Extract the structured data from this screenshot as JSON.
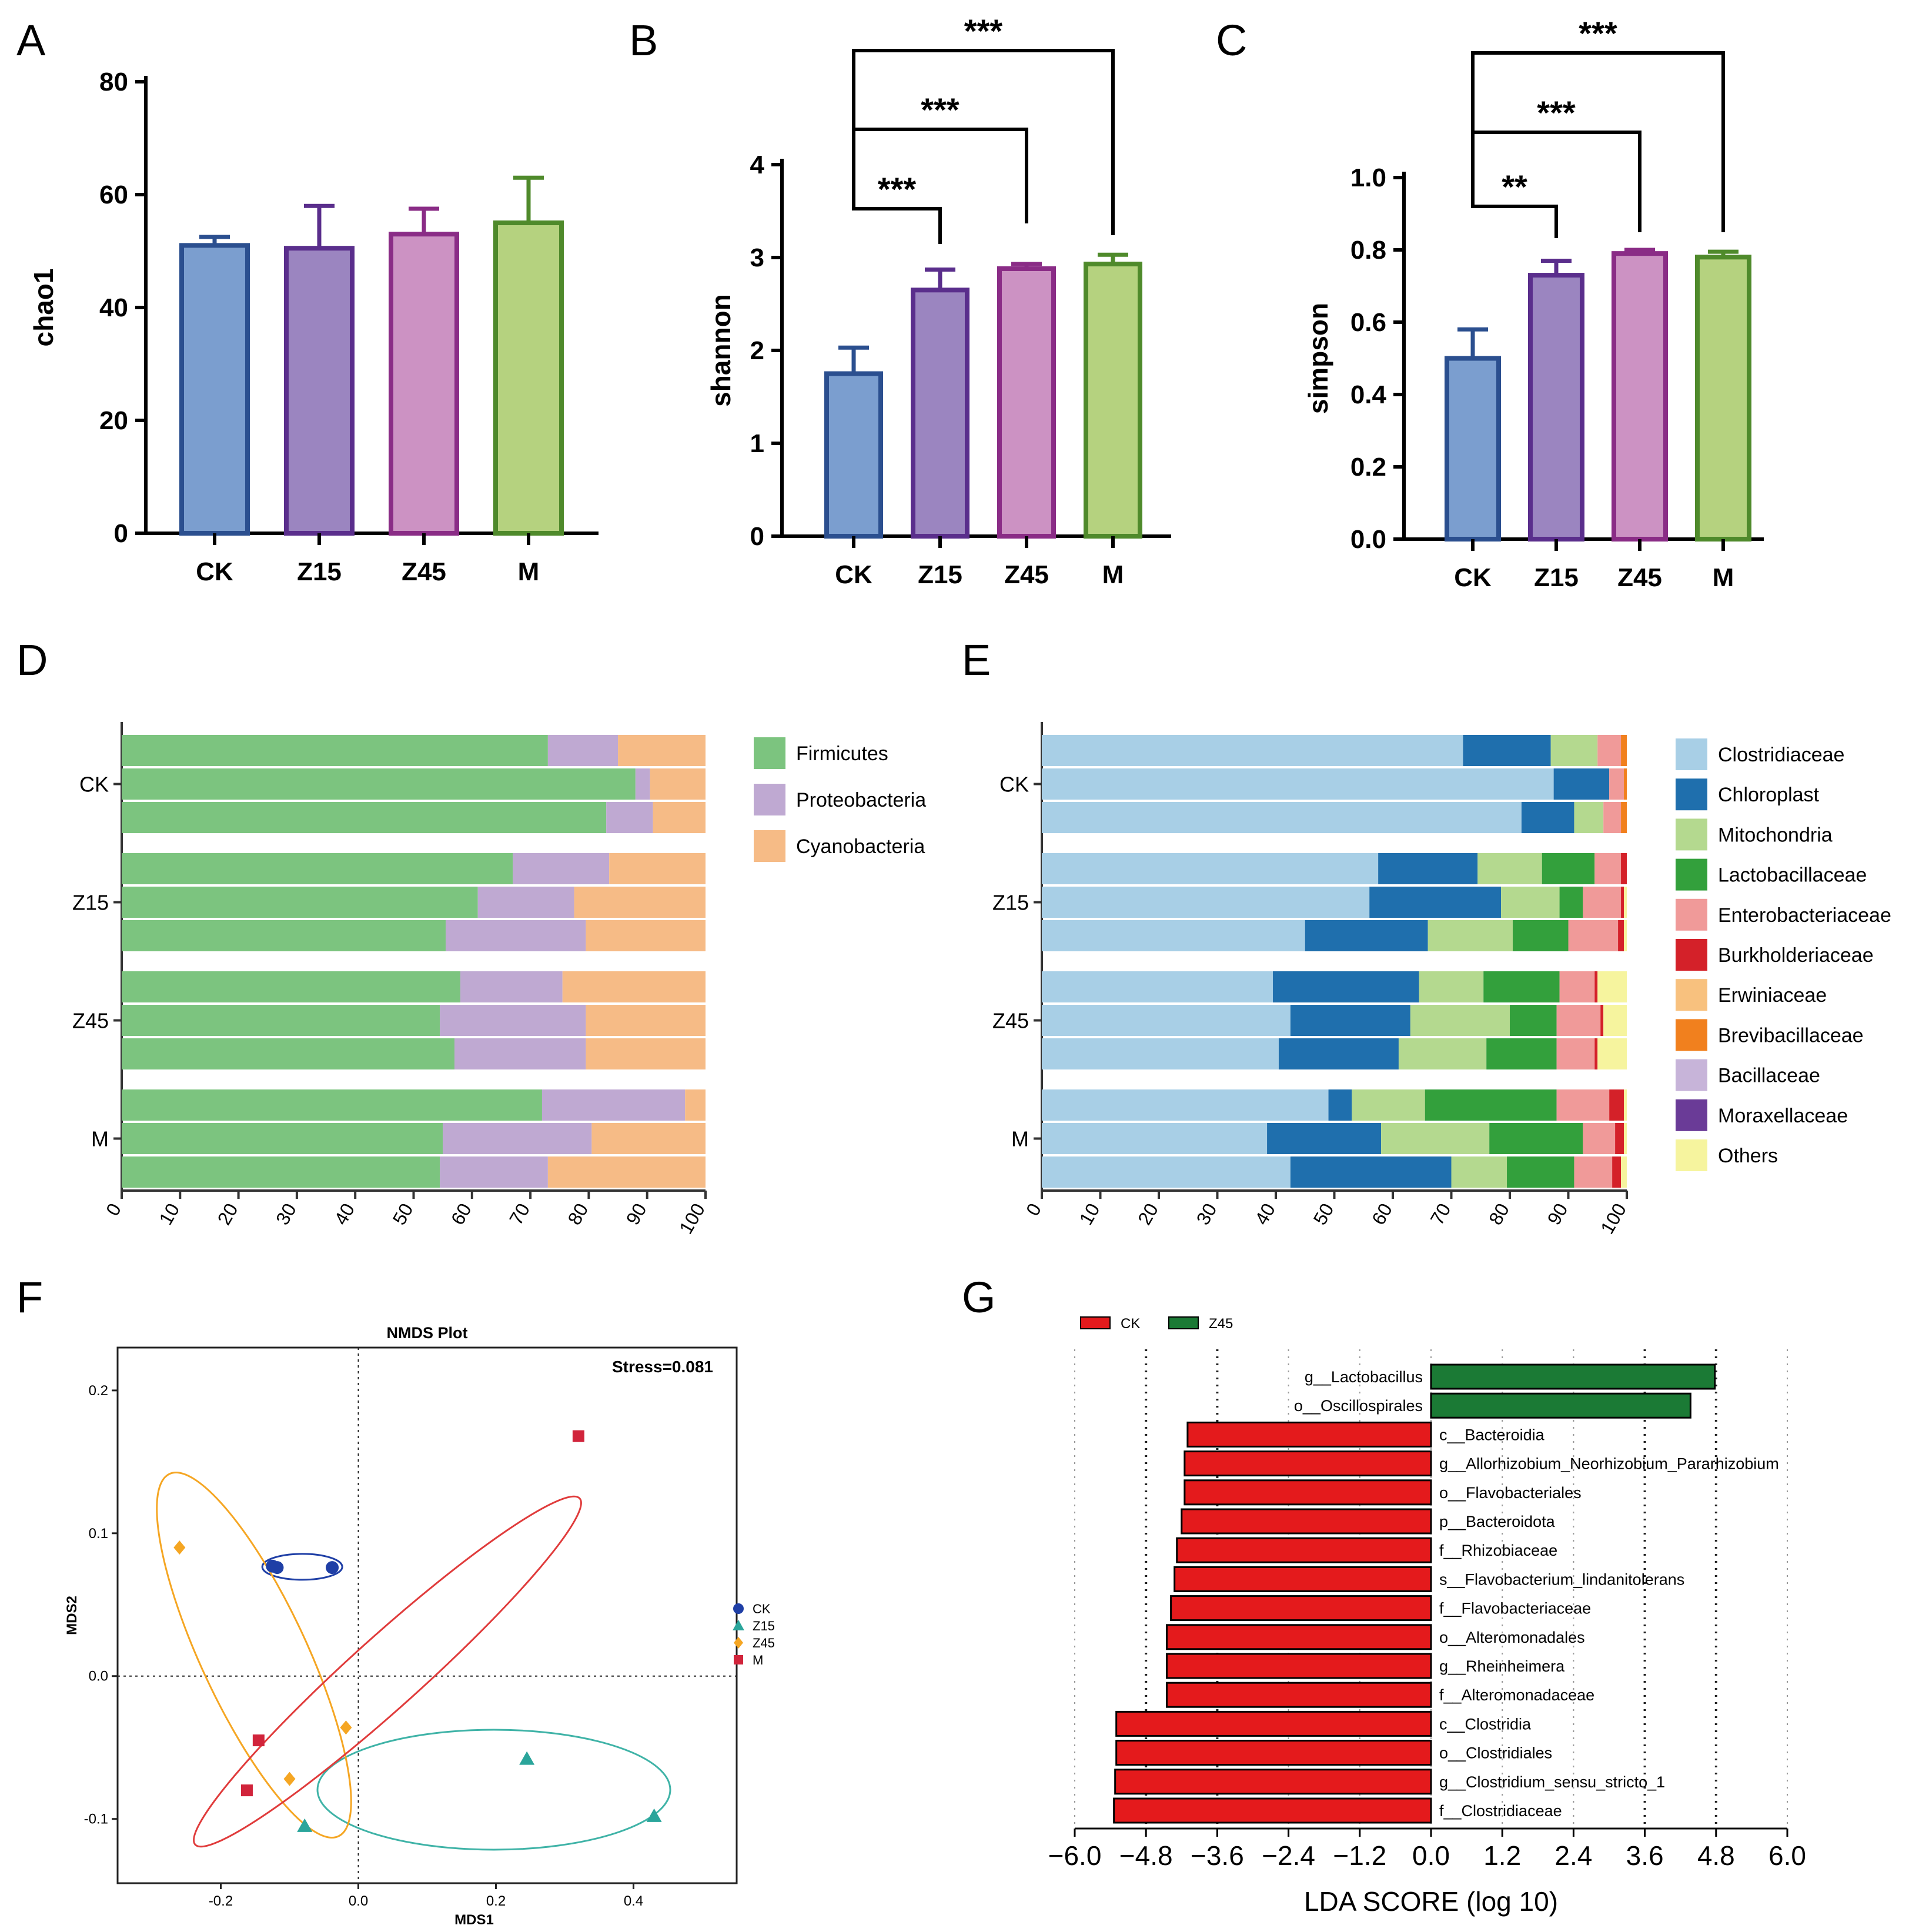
{
  "panels": {
    "A": {
      "letter": "A"
    },
    "B": {
      "letter": "B"
    },
    "C": {
      "letter": "C"
    },
    "D": {
      "letter": "D"
    },
    "E": {
      "letter": "E"
    },
    "F": {
      "letter": "F"
    },
    "G": {
      "letter": "G"
    }
  },
  "colors": {
    "CK_fill": "#7b9ecf",
    "CK_edge": "#2b4f8f",
    "Z15_fill": "#9b85c0",
    "Z15_edge": "#5a2e8c",
    "Z45_fill": "#cc92c3",
    "Z45_edge": "#8a2c86",
    "M_fill": "#b5d27f",
    "M_edge": "#4f8a2b",
    "Firmicutes": "#7cc47f",
    "Proteobacteria": "#bfa9d2",
    "Cyanobacteria": "#f6bb86",
    "lda_CK": "#e41a1c",
    "lda_Z45": "#1b7a35",
    "nmds_CK": "#1f3fa6",
    "nmds_Z15": "#2aa59b",
    "nmds_Z45": "#f5a623",
    "nmds_M": "#d1243b",
    "ellipse_CK": "#1f3fa6",
    "ellipse_Z15": "#3fb3a7",
    "ellipse_Z45": "#f5a623",
    "ellipse_M": "#e03b3b"
  },
  "chart_data": [
    {
      "id": "A",
      "type": "bar",
      "title": "",
      "categories": [
        "CK",
        "Z15",
        "Z45",
        "M"
      ],
      "values": [
        51,
        50.5,
        53,
        55
      ],
      "errors": [
        1.5,
        7.5,
        4.5,
        8
      ],
      "ylabel": "chao1",
      "ylim": [
        0,
        80
      ],
      "yticks": [
        0,
        20,
        40,
        60,
        80
      ],
      "ytick_labels": [
        "0",
        "20",
        "40",
        "60",
        "80"
      ],
      "brackets": []
    },
    {
      "id": "B",
      "type": "bar",
      "title": "",
      "categories": [
        "CK",
        "Z15",
        "Z45",
        "M"
      ],
      "values": [
        1.75,
        2.65,
        2.88,
        2.93
      ],
      "errors": [
        0.28,
        0.22,
        0.05,
        0.1
      ],
      "ylabel": "shannon",
      "ylim": [
        0,
        4
      ],
      "yticks": [
        0,
        1,
        2,
        3,
        4
      ],
      "ytick_labels": [
        "0",
        "1",
        "2",
        "3",
        "4"
      ],
      "brackets": [
        {
          "from": 0,
          "to": 1,
          "label": "***"
        },
        {
          "from": 0,
          "to": 2,
          "label": "***"
        },
        {
          "from": 0,
          "to": 3,
          "label": "***"
        }
      ]
    },
    {
      "id": "C",
      "type": "bar",
      "title": "",
      "categories": [
        "CK",
        "Z15",
        "Z45",
        "M"
      ],
      "values": [
        0.5,
        0.73,
        0.79,
        0.78
      ],
      "errors": [
        0.08,
        0.04,
        0.01,
        0.015
      ],
      "ylabel": "simpson",
      "ylim": [
        0,
        1.0
      ],
      "yticks": [
        0,
        0.2,
        0.4,
        0.6,
        0.8,
        1.0
      ],
      "ytick_labels": [
        "0.0",
        "0.2",
        "0.4",
        "0.6",
        "0.8",
        "1.0"
      ],
      "brackets": [
        {
          "from": 0,
          "to": 1,
          "label": "**"
        },
        {
          "from": 0,
          "to": 2,
          "label": "***"
        },
        {
          "from": 0,
          "to": 3,
          "label": "***"
        }
      ]
    },
    {
      "id": "D",
      "type": "bar",
      "orientation": "horizontal-stacked",
      "groups": [
        "CK",
        "Z15",
        "Z45",
        "M"
      ],
      "xticks": [
        0,
        10,
        20,
        30,
        40,
        50,
        60,
        70,
        80,
        90,
        100
      ],
      "legend": [
        "Firmicutes",
        "Proteobacteria",
        "Cyanobacteria"
      ],
      "samples": [
        [
          73,
          12,
          15
        ],
        [
          88,
          2.5,
          9.5
        ],
        [
          83,
          8,
          9
        ],
        [
          67,
          16.5,
          16.5
        ],
        [
          61,
          16.5,
          22.5
        ],
        [
          55.5,
          24,
          20.5
        ],
        [
          58,
          17.5,
          24.5
        ],
        [
          54.5,
          25,
          20.5
        ],
        [
          57,
          22.5,
          20.5
        ],
        [
          72,
          24.5,
          3.5
        ],
        [
          55,
          25.5,
          19.5
        ],
        [
          54.5,
          18.5,
          27
        ]
      ]
    },
    {
      "id": "E",
      "type": "bar",
      "orientation": "horizontal-stacked",
      "groups": [
        "CK",
        "Z15",
        "Z45",
        "M"
      ],
      "xticks": [
        0,
        10,
        20,
        30,
        40,
        50,
        60,
        70,
        80,
        90,
        100
      ],
      "legend": [
        "Clostridiaceae",
        "Chloroplast",
        "Mitochondria",
        "Lactobacillaceae",
        "Enterobacteriaceae",
        "Burkholderiaceae",
        "Erwiniaceae",
        "Brevibacillaceae",
        "Bacillaceae",
        "Moraxellaceae",
        "Others"
      ],
      "legend_colors": [
        "#a8cfe6",
        "#1f6fad",
        "#b4d98f",
        "#33a03c",
        "#f09a99",
        "#d42129",
        "#f8c17e",
        "#f1801e",
        "#c7b4d9",
        "#6a3b97",
        "#f6f49e"
      ],
      "samples": [
        [
          72,
          15,
          8,
          0,
          4,
          0,
          0,
          1,
          0,
          0,
          0
        ],
        [
          87.5,
          9.5,
          0,
          0,
          2.5,
          0,
          0,
          0.5,
          0,
          0,
          0
        ],
        [
          82,
          9,
          5,
          0,
          3,
          0,
          0,
          1,
          0,
          0,
          0
        ],
        [
          57.5,
          17,
          11,
          9,
          4.5,
          1,
          0,
          0,
          0,
          0,
          0
        ],
        [
          56,
          22.5,
          10,
          4,
          6.5,
          0.5,
          0,
          0,
          0,
          0,
          0.5
        ],
        [
          45,
          21,
          14.5,
          9.5,
          8.5,
          1,
          0,
          0,
          0,
          0,
          0.5
        ],
        [
          39.5,
          25,
          11,
          13,
          6,
          0.5,
          0,
          0,
          0,
          0,
          5
        ],
        [
          42.5,
          20.5,
          17,
          8,
          7.5,
          0.5,
          0,
          0,
          0,
          0,
          4
        ],
        [
          40.5,
          20.5,
          15,
          12,
          6.5,
          0.5,
          0,
          0,
          0,
          0,
          5
        ],
        [
          49,
          4,
          12.5,
          22.5,
          9,
          2.5,
          0,
          0,
          0,
          0,
          0.5
        ],
        [
          38.5,
          19.5,
          18.5,
          16,
          5.5,
          1.5,
          0,
          0,
          0,
          0,
          0.5
        ],
        [
          42.5,
          27.5,
          9.5,
          11.5,
          6.5,
          1.5,
          0,
          0,
          0,
          0,
          1
        ]
      ]
    },
    {
      "id": "F",
      "type": "scatter",
      "title": "NMDS Plot",
      "annotation": "Stress=0.081",
      "xlabel": "MDS1",
      "ylabel": "MDS2",
      "xlim": [
        -0.35,
        0.55
      ],
      "ylim": [
        -0.145,
        0.23
      ],
      "xticks": [
        -0.2,
        0,
        0.2,
        0.4
      ],
      "xtick_labels": [
        "-0.2",
        "0.0",
        "0.2",
        "0.4"
      ],
      "yticks": [
        -0.1,
        0,
        0.1,
        0.2
      ],
      "ytick_labels": [
        "-0.1",
        "0.0",
        "0.1",
        "0.2"
      ],
      "series": [
        {
          "name": "CK",
          "marker": "circle",
          "points": [
            [
              -0.125,
              0.077
            ],
            [
              -0.118,
              0.076
            ],
            [
              -0.038,
              0.076
            ]
          ]
        },
        {
          "name": "Z15",
          "marker": "triangle",
          "points": [
            [
              0.245,
              -0.058
            ],
            [
              0.43,
              -0.098
            ],
            [
              -0.078,
              -0.105
            ]
          ]
        },
        {
          "name": "Z45",
          "marker": "diamond",
          "points": [
            [
              -0.26,
              0.09
            ],
            [
              -0.018,
              -0.036
            ],
            [
              -0.1,
              -0.072
            ]
          ]
        },
        {
          "name": "M",
          "marker": "square",
          "points": [
            [
              0.32,
              0.168
            ],
            [
              -0.145,
              -0.045
            ],
            [
              -0.162,
              -0.08
            ]
          ]
        }
      ]
    },
    {
      "id": "G",
      "type": "bar",
      "orientation": "horizontal",
      "legend": [
        "CK",
        "Z45"
      ],
      "xlabel": "LDA SCORE (log 10)",
      "xlim": [
        -6.0,
        6.0
      ],
      "xticks": [
        -6.0,
        -4.8,
        -3.6,
        -2.4,
        -1.2,
        0.0,
        1.2,
        2.4,
        3.6,
        4.8,
        6.0
      ],
      "xtick_labels": [
        "−6.0",
        "−4.8",
        "−3.6",
        "−2.4",
        "−1.2",
        "0.0",
        "1.2",
        "2.4",
        "3.6",
        "4.8",
        "6.0"
      ],
      "bars": [
        {
          "label": "g__Lactobacillus",
          "value": 4.78,
          "group": "Z45"
        },
        {
          "label": "o__Oscillospirales",
          "value": 4.37,
          "group": "Z45"
        },
        {
          "label": "c__Bacteroidia",
          "value": -4.1,
          "group": "CK"
        },
        {
          "label": "g__Allorhizobium_Neorhizobium_Pararhizobium",
          "value": -4.15,
          "group": "CK"
        },
        {
          "label": "o__Flavobacteriales",
          "value": -4.15,
          "group": "CK"
        },
        {
          "label": "p__Bacteroidota",
          "value": -4.2,
          "group": "CK"
        },
        {
          "label": "f__Rhizobiaceae",
          "value": -4.28,
          "group": "CK"
        },
        {
          "label": "s__Flavobacterium_lindanitolerans",
          "value": -4.32,
          "group": "CK"
        },
        {
          "label": "f__Flavobacteriaceae",
          "value": -4.38,
          "group": "CK"
        },
        {
          "label": "o__Alteromonadales",
          "value": -4.45,
          "group": "CK"
        },
        {
          "label": "g__Rheinheimera",
          "value": -4.45,
          "group": "CK"
        },
        {
          "label": "f__Alteromonadaceae",
          "value": -4.45,
          "group": "CK"
        },
        {
          "label": "c__Clostridia",
          "value": -5.3,
          "group": "CK"
        },
        {
          "label": "o__Clostridiales",
          "value": -5.3,
          "group": "CK"
        },
        {
          "label": "g__Clostridium_sensu_stricto_1",
          "value": -5.32,
          "group": "CK"
        },
        {
          "label": "f__Clostridiaceae",
          "value": -5.34,
          "group": "CK"
        }
      ]
    }
  ]
}
